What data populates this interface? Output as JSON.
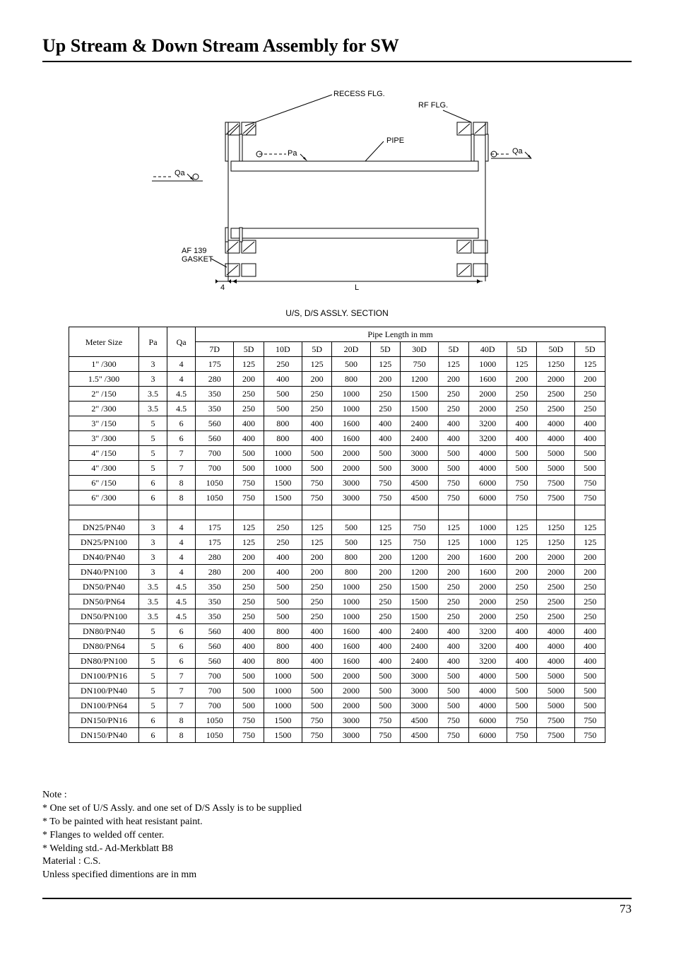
{
  "title": "Up Stream & Down Stream Assembly for SW",
  "diagram": {
    "caption": "U/S, D/S ASSLY. SECTION",
    "labels": {
      "recess_flg": "RECESS FLG.",
      "rf_flg": "RF FLG.",
      "pipe": "PIPE",
      "pa": "Pa",
      "qa_left": "Qa",
      "qa_right": "Qa",
      "gasket": "AF 139\nGASKET",
      "dim4": "4",
      "dimL": "L"
    }
  },
  "table": {
    "header1_meter": "Meter\nSize",
    "header1_pa": "Pa",
    "header1_qa": "Qa",
    "header1_pipe": "Pipe Length in mm",
    "header2": [
      "7D",
      "5D",
      "10D",
      "5D",
      "20D",
      "5D",
      "30D",
      "5D",
      "40D",
      "5D",
      "50D",
      "5D"
    ],
    "rows1": [
      {
        "label": "1\" /300",
        "pa": "3",
        "qa": "4",
        "vals": [
          "175",
          "125",
          "250",
          "125",
          "500",
          "125",
          "750",
          "125",
          "1000",
          "125",
          "1250",
          "125"
        ]
      },
      {
        "label": "1.5\" /300",
        "pa": "3",
        "qa": "4",
        "vals": [
          "280",
          "200",
          "400",
          "200",
          "800",
          "200",
          "1200",
          "200",
          "1600",
          "200",
          "2000",
          "200"
        ]
      },
      {
        "label": "2\" /150",
        "pa": "3.5",
        "qa": "4.5",
        "vals": [
          "350",
          "250",
          "500",
          "250",
          "1000",
          "250",
          "1500",
          "250",
          "2000",
          "250",
          "2500",
          "250"
        ]
      },
      {
        "label": "2\" /300",
        "pa": "3.5",
        "qa": "4.5",
        "vals": [
          "350",
          "250",
          "500",
          "250",
          "1000",
          "250",
          "1500",
          "250",
          "2000",
          "250",
          "2500",
          "250"
        ]
      },
      {
        "label": "3\" /150",
        "pa": "5",
        "qa": "6",
        "vals": [
          "560",
          "400",
          "800",
          "400",
          "1600",
          "400",
          "2400",
          "400",
          "3200",
          "400",
          "4000",
          "400"
        ]
      },
      {
        "label": "3\" /300",
        "pa": "5",
        "qa": "6",
        "vals": [
          "560",
          "400",
          "800",
          "400",
          "1600",
          "400",
          "2400",
          "400",
          "3200",
          "400",
          "4000",
          "400"
        ]
      },
      {
        "label": "4\" /150",
        "pa": "5",
        "qa": "7",
        "vals": [
          "700",
          "500",
          "1000",
          "500",
          "2000",
          "500",
          "3000",
          "500",
          "4000",
          "500",
          "5000",
          "500"
        ]
      },
      {
        "label": "4\" /300",
        "pa": "5",
        "qa": "7",
        "vals": [
          "700",
          "500",
          "1000",
          "500",
          "2000",
          "500",
          "3000",
          "500",
          "4000",
          "500",
          "5000",
          "500"
        ]
      },
      {
        "label": "6\" /150",
        "pa": "6",
        "qa": "8",
        "vals": [
          "1050",
          "750",
          "1500",
          "750",
          "3000",
          "750",
          "4500",
          "750",
          "6000",
          "750",
          "7500",
          "750"
        ]
      },
      {
        "label": "6\" /300",
        "pa": "6",
        "qa": "8",
        "vals": [
          "1050",
          "750",
          "1500",
          "750",
          "3000",
          "750",
          "4500",
          "750",
          "6000",
          "750",
          "7500",
          "750"
        ]
      }
    ],
    "rows2": [
      {
        "label": "DN25/PN40",
        "pa": "3",
        "qa": "4",
        "vals": [
          "175",
          "125",
          "250",
          "125",
          "500",
          "125",
          "750",
          "125",
          "1000",
          "125",
          "1250",
          "125"
        ]
      },
      {
        "label": "DN25/PN100",
        "pa": "3",
        "qa": "4",
        "vals": [
          "175",
          "125",
          "250",
          "125",
          "500",
          "125",
          "750",
          "125",
          "1000",
          "125",
          "1250",
          "125"
        ]
      },
      {
        "label": "DN40/PN40",
        "pa": "3",
        "qa": "4",
        "vals": [
          "280",
          "200",
          "400",
          "200",
          "800",
          "200",
          "1200",
          "200",
          "1600",
          "200",
          "2000",
          "200"
        ]
      },
      {
        "label": "DN40/PN100",
        "pa": "3",
        "qa": "4",
        "vals": [
          "280",
          "200",
          "400",
          "200",
          "800",
          "200",
          "1200",
          "200",
          "1600",
          "200",
          "2000",
          "200"
        ]
      },
      {
        "label": "DN50/PN40",
        "pa": "3.5",
        "qa": "4.5",
        "vals": [
          "350",
          "250",
          "500",
          "250",
          "1000",
          "250",
          "1500",
          "250",
          "2000",
          "250",
          "2500",
          "250"
        ]
      },
      {
        "label": "DN50/PN64",
        "pa": "3.5",
        "qa": "4.5",
        "vals": [
          "350",
          "250",
          "500",
          "250",
          "1000",
          "250",
          "1500",
          "250",
          "2000",
          "250",
          "2500",
          "250"
        ]
      },
      {
        "label": "DN50/PN100",
        "pa": "3.5",
        "qa": "4.5",
        "vals": [
          "350",
          "250",
          "500",
          "250",
          "1000",
          "250",
          "1500",
          "250",
          "2000",
          "250",
          "2500",
          "250"
        ]
      },
      {
        "label": "DN80/PN40",
        "pa": "5",
        "qa": "6",
        "vals": [
          "560",
          "400",
          "800",
          "400",
          "1600",
          "400",
          "2400",
          "400",
          "3200",
          "400",
          "4000",
          "400"
        ]
      },
      {
        "label": "DN80/PN64",
        "pa": "5",
        "qa": "6",
        "vals": [
          "560",
          "400",
          "800",
          "400",
          "1600",
          "400",
          "2400",
          "400",
          "3200",
          "400",
          "4000",
          "400"
        ]
      },
      {
        "label": "DN80/PN100",
        "pa": "5",
        "qa": "6",
        "vals": [
          "560",
          "400",
          "800",
          "400",
          "1600",
          "400",
          "2400",
          "400",
          "3200",
          "400",
          "4000",
          "400"
        ]
      },
      {
        "label": "DN100/PN16",
        "pa": "5",
        "qa": "7",
        "vals": [
          "700",
          "500",
          "1000",
          "500",
          "2000",
          "500",
          "3000",
          "500",
          "4000",
          "500",
          "5000",
          "500"
        ]
      },
      {
        "label": "DN100/PN40",
        "pa": "5",
        "qa": "7",
        "vals": [
          "700",
          "500",
          "1000",
          "500",
          "2000",
          "500",
          "3000",
          "500",
          "4000",
          "500",
          "5000",
          "500"
        ]
      },
      {
        "label": "DN100/PN64",
        "pa": "5",
        "qa": "7",
        "vals": [
          "700",
          "500",
          "1000",
          "500",
          "2000",
          "500",
          "3000",
          "500",
          "4000",
          "500",
          "5000",
          "500"
        ]
      },
      {
        "label": "DN150/PN16",
        "pa": "6",
        "qa": "8",
        "vals": [
          "1050",
          "750",
          "1500",
          "750",
          "3000",
          "750",
          "4500",
          "750",
          "6000",
          "750",
          "7500",
          "750"
        ]
      },
      {
        "label": "DN150/PN40",
        "pa": "6",
        "qa": "8",
        "vals": [
          "1050",
          "750",
          "1500",
          "750",
          "3000",
          "750",
          "4500",
          "750",
          "6000",
          "750",
          "7500",
          "750"
        ]
      }
    ]
  },
  "notes": {
    "heading": "Note :",
    "lines": [
      "* One set of U/S Assly. and one set of D/S Assly is to be supplied",
      "* To be painted with heat resistant paint.",
      "* Flanges to welded off center.",
      "* Welding std.- Ad-Merkblatt B8",
      "Material : C.S.",
      "Unless specified dimentions are in mm"
    ]
  },
  "page_number": "73"
}
